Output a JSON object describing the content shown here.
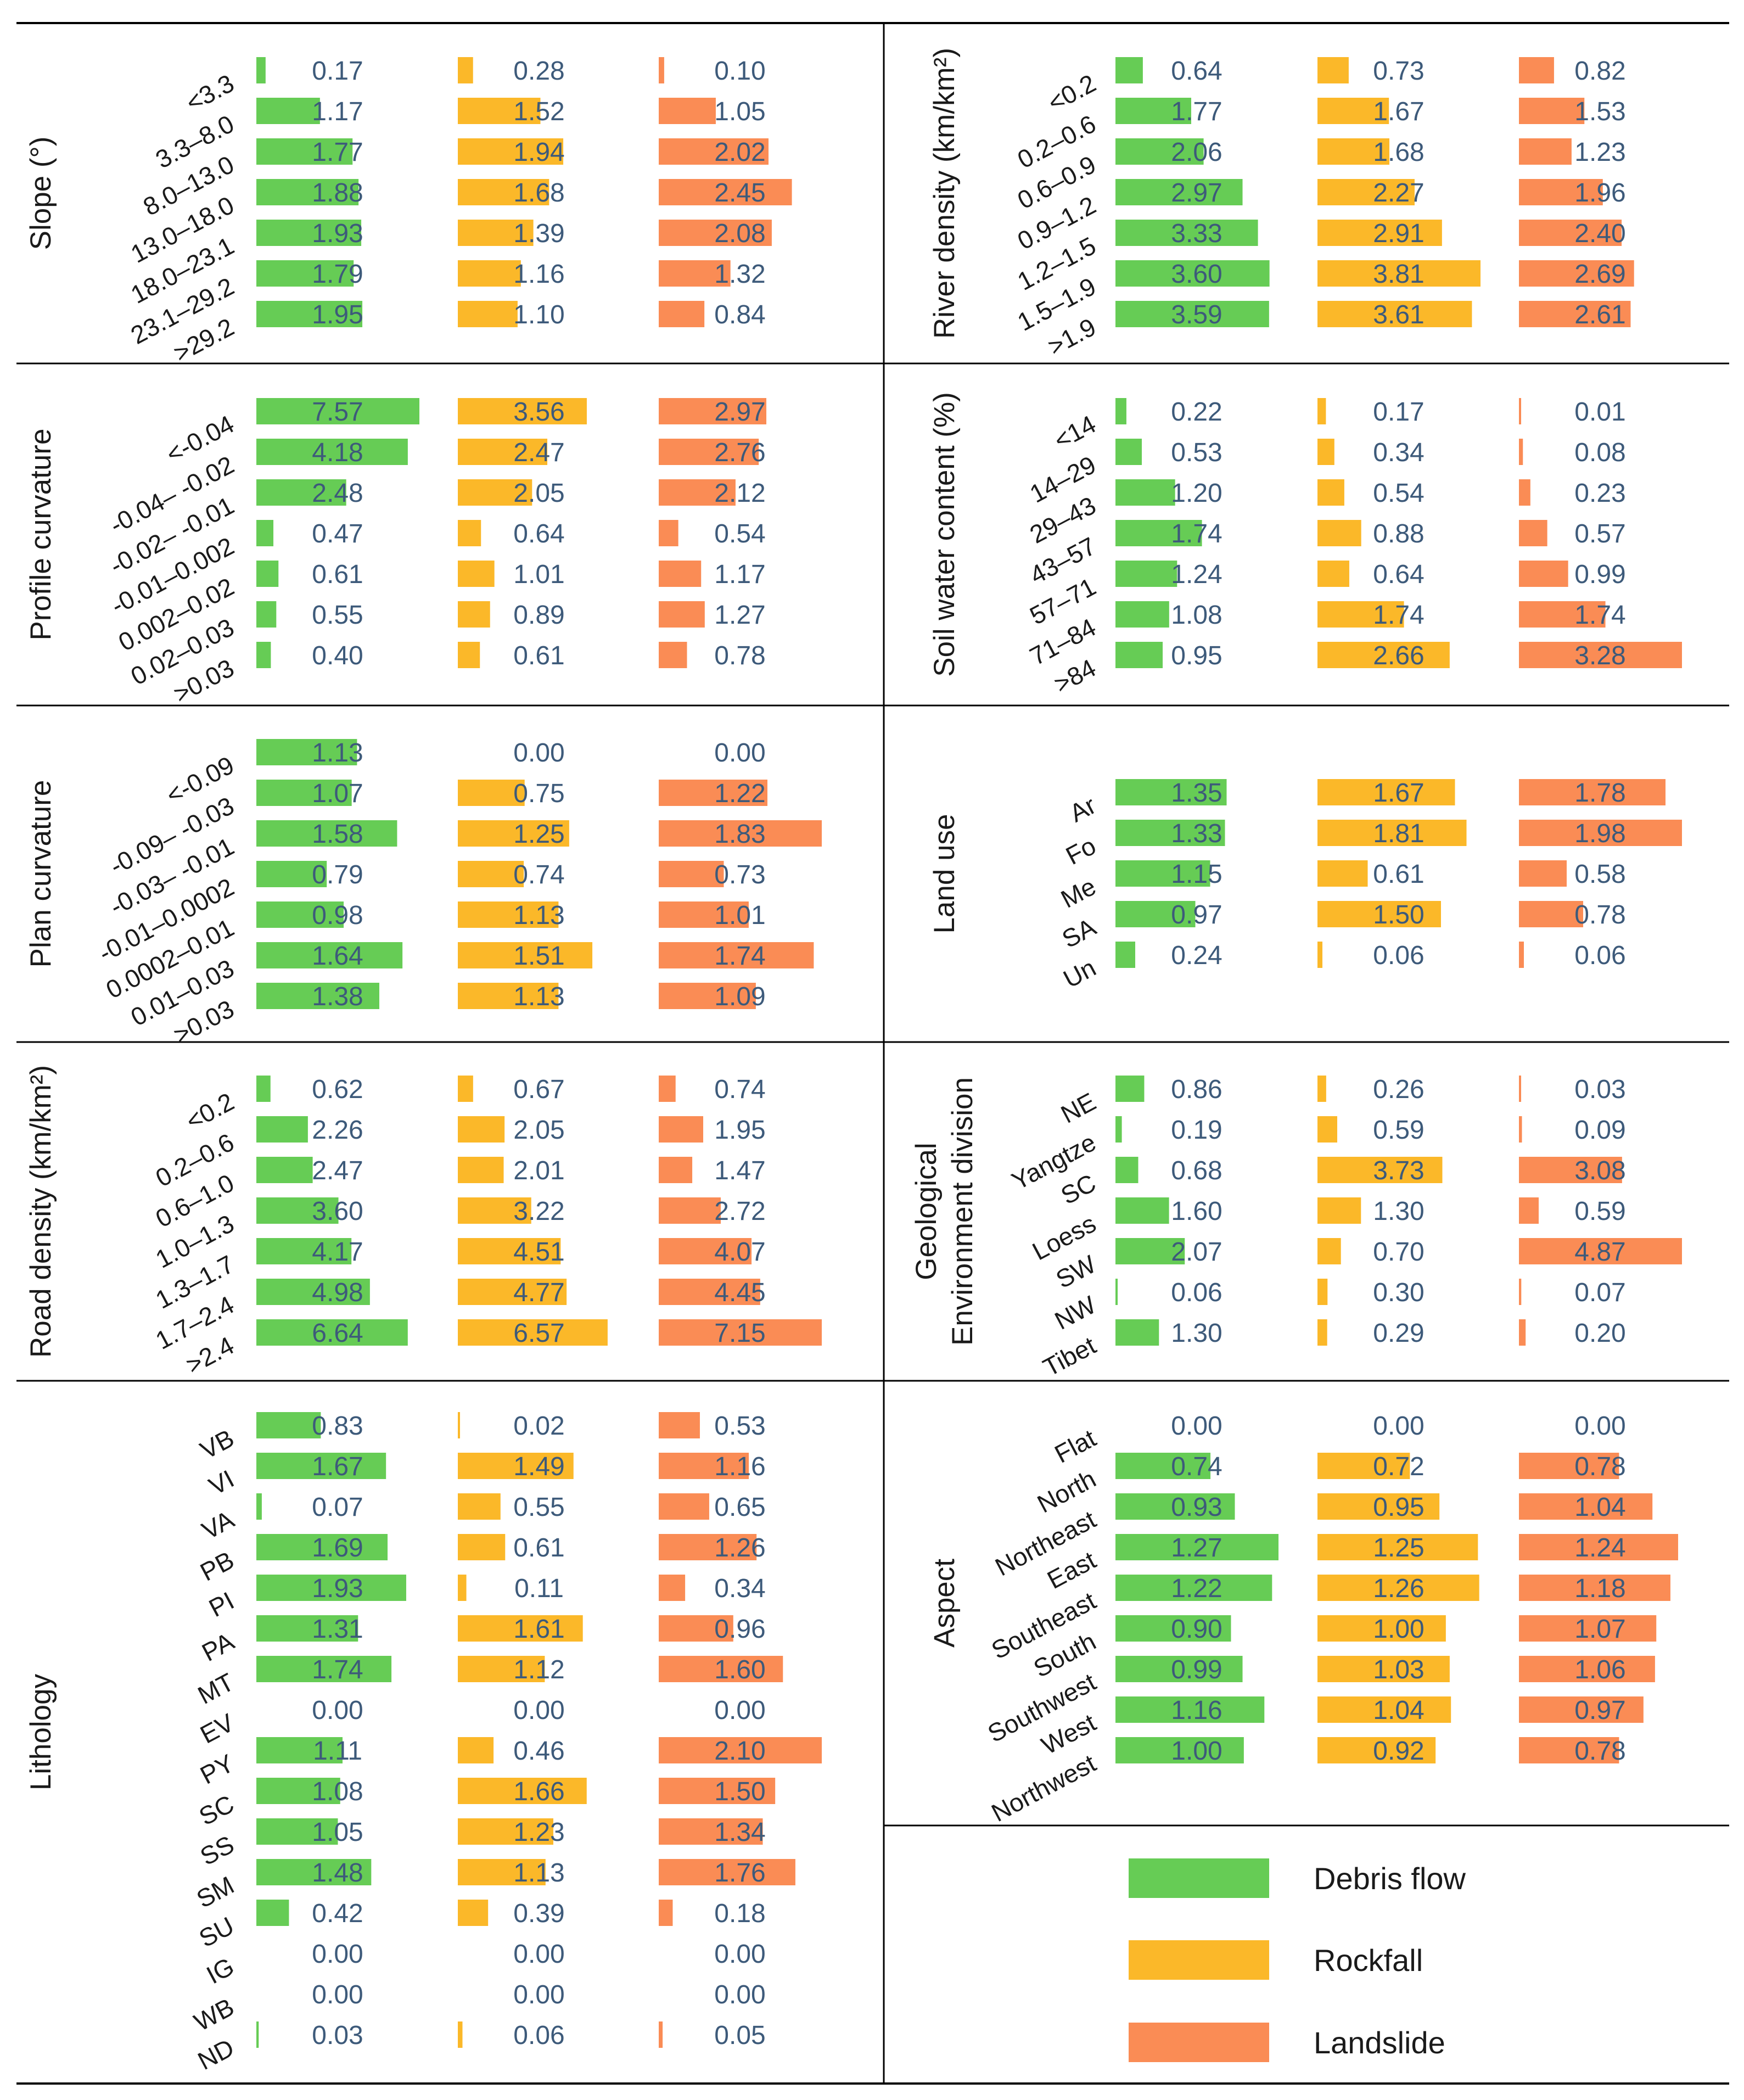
{
  "chart_data": {
    "type": "bar",
    "series_names": [
      "Debris flow",
      "Rockfall",
      "Landslide"
    ],
    "colors": {
      "Debris flow": "#66cc55",
      "Rockfall": "#fbb829",
      "Landslide": "#fa8c55"
    },
    "panels": [
      {
        "id": "slope",
        "title": [
          "Slope (°)"
        ],
        "scale_max": 3.0,
        "categories": [
          "<3.3",
          "3.3–8.0",
          "8.0–13.0",
          "13.0–18.0",
          "18.0–23.1",
          "23.1–29.2",
          ">29.2"
        ],
        "series": [
          {
            "name": "Debris flow",
            "values": [
              0.17,
              1.17,
              1.77,
              1.88,
              1.93,
              1.79,
              1.95
            ]
          },
          {
            "name": "Rockfall",
            "values": [
              0.28,
              1.52,
              1.94,
              1.68,
              1.39,
              1.16,
              1.1
            ]
          },
          {
            "name": "Landslide",
            "values": [
              0.1,
              1.05,
              2.02,
              2.45,
              2.08,
              1.32,
              0.84
            ]
          }
        ]
      },
      {
        "id": "river-density",
        "title": [
          "River density (km/km²)"
        ],
        "scale_max": 3.81,
        "categories": [
          "<0.2",
          "0.2–0.6",
          "0.6–0.9",
          "0.9–1.2",
          "1.2–1.5",
          "1.5–1.9",
          ">1.9"
        ],
        "series": [
          {
            "name": "Debris flow",
            "values": [
              0.64,
              1.77,
              2.06,
              2.97,
              3.33,
              3.6,
              3.59
            ]
          },
          {
            "name": "Rockfall",
            "values": [
              0.73,
              1.67,
              1.68,
              2.27,
              2.91,
              3.81,
              3.61
            ]
          },
          {
            "name": "Landslide",
            "values": [
              0.82,
              1.53,
              1.23,
              1.96,
              2.4,
              2.69,
              2.61
            ]
          }
        ]
      },
      {
        "id": "profile-curvature",
        "title": [
          "Profile curvature"
        ],
        "scale_max": 4.5,
        "categories": [
          "<-0.04",
          "-0.04– -0.02",
          "-0.02– -0.01",
          "-0.01–0.002",
          "0.002–0.02",
          "0.02–0.03",
          ">0.03"
        ],
        "series": [
          {
            "name": "Debris flow",
            "values": [
              7.57,
              4.18,
              2.48,
              0.47,
              0.61,
              0.55,
              0.4
            ]
          },
          {
            "name": "Rockfall",
            "values": [
              3.56,
              2.47,
              2.05,
              0.64,
              1.01,
              0.89,
              0.61
            ]
          },
          {
            "name": "Landslide",
            "values": [
              2.97,
              2.76,
              2.12,
              0.54,
              1.17,
              1.27,
              0.78
            ]
          }
        ]
      },
      {
        "id": "soil-water",
        "title": [
          "Soil water content (%)"
        ],
        "scale_max": 3.28,
        "categories": [
          "<14",
          "14–29",
          "29–43",
          "43–57",
          "57–71",
          "71–84",
          ">84"
        ],
        "series": [
          {
            "name": "Debris flow",
            "values": [
              0.22,
              0.53,
              1.2,
              1.74,
              1.24,
              1.08,
              0.95
            ]
          },
          {
            "name": "Rockfall",
            "values": [
              0.17,
              0.34,
              0.54,
              0.88,
              0.64,
              1.74,
              2.66
            ]
          },
          {
            "name": "Landslide",
            "values": [
              0.01,
              0.08,
              0.23,
              0.57,
              0.99,
              1.74,
              3.28
            ]
          }
        ]
      },
      {
        "id": "plan-curvature",
        "title": [
          "Plan curvature"
        ],
        "scale_max": 1.83,
        "categories": [
          "<-0.09",
          "-0.09– -0.03",
          "-0.03– -0.01",
          "-0.01–0.0002",
          "0.0002–0.01",
          "0.01–0.03",
          ">0.03"
        ],
        "series": [
          {
            "name": "Debris flow",
            "values": [
              1.13,
              1.07,
              1.58,
              0.79,
              0.98,
              1.64,
              1.38
            ]
          },
          {
            "name": "Rockfall",
            "values": [
              0.0,
              0.75,
              1.25,
              0.74,
              1.13,
              1.51,
              1.13
            ]
          },
          {
            "name": "Landslide",
            "values": [
              0.0,
              1.22,
              1.83,
              0.73,
              1.01,
              1.74,
              1.09
            ]
          }
        ]
      },
      {
        "id": "land-use",
        "title": [
          "Land use"
        ],
        "scale_max": 1.98,
        "categories": [
          "Ar",
          "Fo",
          "Me",
          "SA",
          "Un"
        ],
        "series": [
          {
            "name": "Debris flow",
            "values": [
              1.35,
              1.33,
              1.15,
              0.97,
              0.24
            ]
          },
          {
            "name": "Rockfall",
            "values": [
              1.67,
              1.81,
              0.61,
              1.5,
              0.06
            ]
          },
          {
            "name": "Landslide",
            "values": [
              1.78,
              1.98,
              0.58,
              0.78,
              0.06
            ]
          }
        ]
      },
      {
        "id": "road-density",
        "title": [
          "Road density (km/km²)"
        ],
        "scale_max": 7.15,
        "categories": [
          "<0.2",
          "0.2–0.6",
          "0.6–1.0",
          "1.0–1.3",
          "1.3–1.7",
          "1.7–2.4",
          ">2.4"
        ],
        "series": [
          {
            "name": "Debris flow",
            "values": [
              0.62,
              2.26,
              2.47,
              3.6,
              4.17,
              4.98,
              6.64
            ]
          },
          {
            "name": "Rockfall",
            "values": [
              0.67,
              2.05,
              2.01,
              3.22,
              4.51,
              4.77,
              6.57
            ]
          },
          {
            "name": "Landslide",
            "values": [
              0.74,
              1.95,
              1.47,
              2.72,
              4.07,
              4.45,
              7.15
            ]
          }
        ]
      },
      {
        "id": "geological",
        "title": [
          "Geological",
          "Environment division"
        ],
        "scale_max": 4.87,
        "categories": [
          "NE",
          "Yangtze",
          "SC",
          "Loess",
          "SW",
          "NW",
          "Tibet"
        ],
        "series": [
          {
            "name": "Debris flow",
            "values": [
              0.86,
              0.19,
              0.68,
              1.6,
              2.07,
              0.06,
              1.3
            ]
          },
          {
            "name": "Rockfall",
            "values": [
              0.26,
              0.59,
              3.73,
              1.3,
              0.7,
              0.3,
              0.29
            ]
          },
          {
            "name": "Landslide",
            "values": [
              0.03,
              0.09,
              3.08,
              0.59,
              4.87,
              0.07,
              0.2
            ]
          }
        ]
      },
      {
        "id": "lithology",
        "title": [
          "Lithology"
        ],
        "scale_max": 2.1,
        "categories": [
          "VB",
          "VI",
          "VA",
          "PB",
          "PI",
          "PA",
          "MT",
          "EV",
          "PY",
          "SC",
          "SS",
          "SM",
          "SU",
          "IG",
          "WB",
          "ND"
        ],
        "series": [
          {
            "name": "Debris flow",
            "values": [
              0.83,
              1.67,
              0.07,
              1.69,
              1.93,
              1.31,
              1.74,
              0.0,
              1.11,
              1.08,
              1.05,
              1.48,
              0.42,
              0.0,
              0.0,
              0.03
            ]
          },
          {
            "name": "Rockfall",
            "values": [
              0.02,
              1.49,
              0.55,
              0.61,
              0.11,
              1.61,
              1.12,
              0.0,
              0.46,
              1.66,
              1.23,
              1.13,
              0.39,
              0.0,
              0.0,
              0.06
            ]
          },
          {
            "name": "Landslide",
            "values": [
              0.53,
              1.16,
              0.65,
              1.26,
              0.34,
              0.96,
              1.6,
              0.0,
              2.1,
              1.5,
              1.34,
              1.76,
              0.18,
              0.0,
              0.0,
              0.05
            ]
          }
        ]
      },
      {
        "id": "aspect",
        "title": [
          "Aspect"
        ],
        "scale_max": 1.27,
        "categories": [
          "Flat",
          "North",
          "Northeast",
          "East",
          "Southeast",
          "South",
          "Southwest",
          "West",
          "Northwest"
        ],
        "series": [
          {
            "name": "Debris flow",
            "values": [
              0.0,
              0.74,
              0.93,
              1.27,
              1.22,
              0.9,
              0.99,
              1.16,
              1.0
            ]
          },
          {
            "name": "Rockfall",
            "values": [
              0.0,
              0.72,
              0.95,
              1.25,
              1.26,
              1.0,
              1.03,
              1.04,
              0.92
            ]
          },
          {
            "name": "Landslide",
            "values": [
              0.0,
              0.78,
              1.04,
              1.24,
              1.18,
              1.07,
              1.06,
              0.97,
              0.78
            ]
          }
        ]
      }
    ]
  },
  "legend": {
    "items": [
      {
        "name": "debris-flow",
        "label": "Debris flow",
        "color": "#66cc55"
      },
      {
        "name": "rockfall",
        "label": "Rockfall",
        "color": "#fbb829"
      },
      {
        "name": "landslide",
        "label": "Landslide",
        "color": "#fa8c55"
      }
    ]
  }
}
